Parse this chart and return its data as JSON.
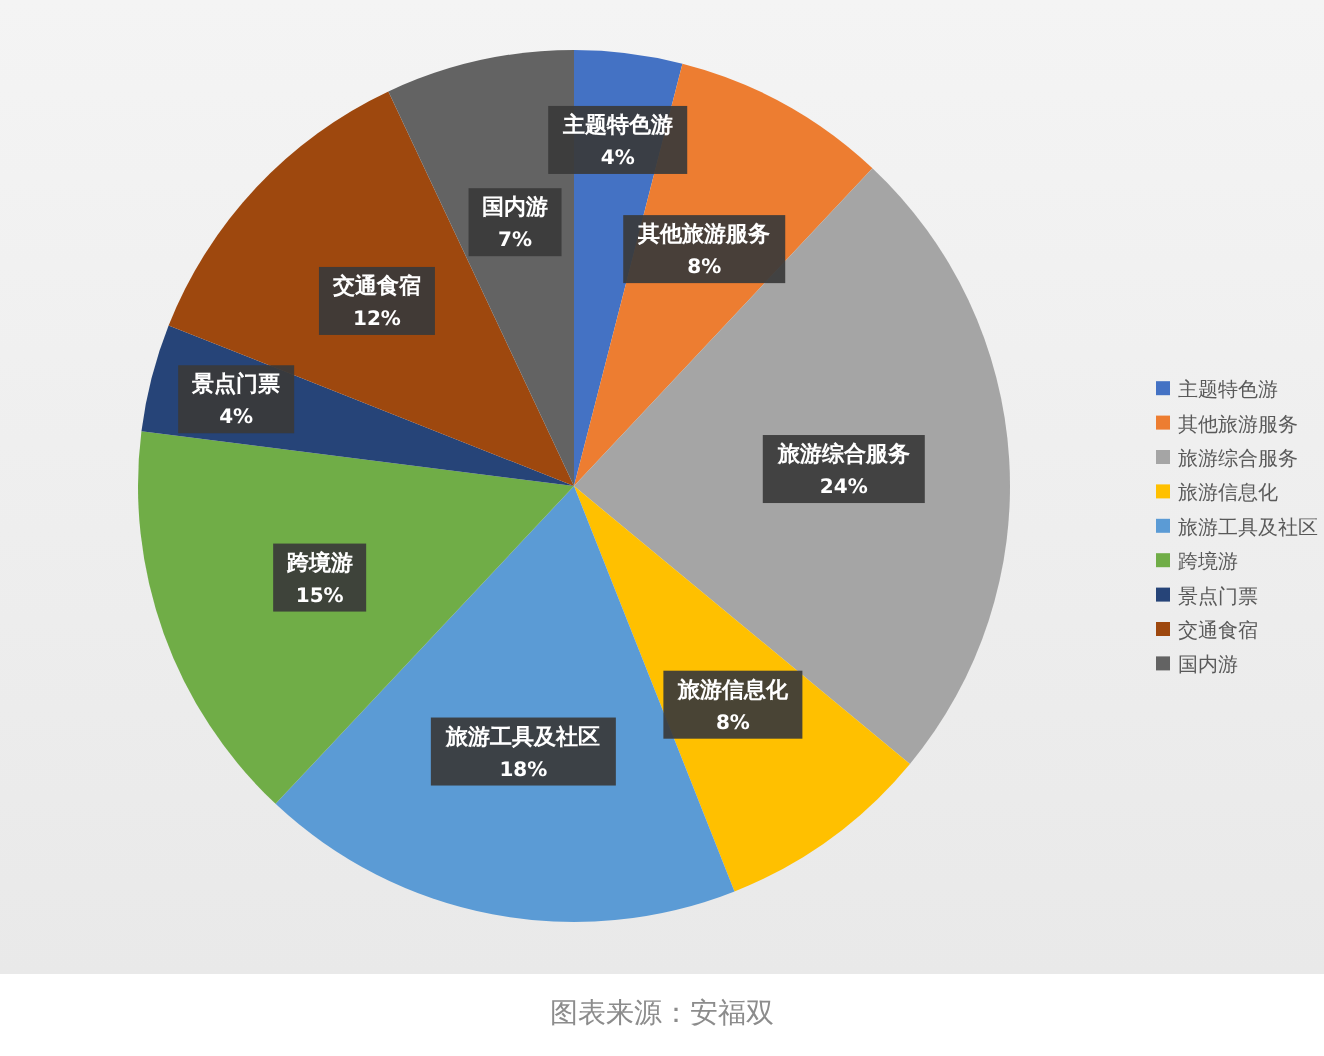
{
  "chart_data": {
    "type": "pie",
    "categories": [
      "主题特色游",
      "其他旅游服务",
      "旅游综合服务",
      "旅游信息化",
      "旅游工具及社区",
      "跨境游",
      "景点门票",
      "交通食宿",
      "国内游"
    ],
    "values": [
      4,
      8,
      24,
      8,
      18,
      15,
      4,
      12,
      7
    ],
    "colors": [
      "#4472c4",
      "#ed7d31",
      "#a5a5a5",
      "#ffc000",
      "#5b9bd5",
      "#70ad47",
      "#264478",
      "#9e480e",
      "#636363"
    ],
    "value_labels": [
      "4%",
      "8%",
      "24%",
      "8%",
      "18%",
      "15%",
      "4%",
      "12%",
      "7%"
    ],
    "legend": "right",
    "annotations": [
      "图表来源：安福双"
    ]
  }
}
